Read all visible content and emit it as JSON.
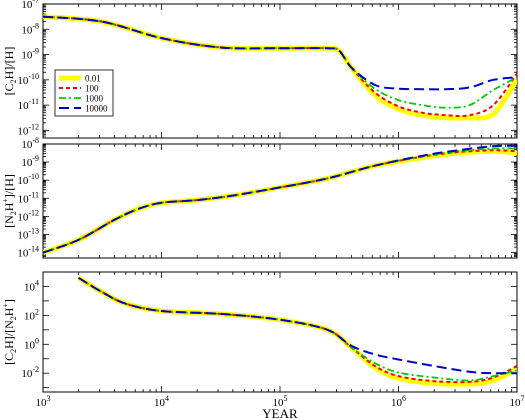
{
  "chart_data": [
    {
      "type": "line",
      "ylabel": "[C2H]/[H]",
      "ylabel_parts": [
        [
          "[C",
          "n"
        ],
        [
          "2",
          "sub"
        ],
        [
          "H]/[H]",
          "n"
        ]
      ],
      "x_scale": "log",
      "y_scale": "log",
      "xlim": [
        1000,
        10000000
      ],
      "ylim_exp": [
        -12.3,
        -7
      ],
      "y_tick_exps": [
        -12,
        -11,
        -10,
        -9,
        -8,
        -7
      ],
      "legend": {
        "placement": "left-lower",
        "entries": [
          "0.01",
          "100",
          "1000",
          "10000"
        ]
      },
      "series": [
        {
          "name": "0.01",
          "points": [
            [
              3.0,
              -7.5
            ],
            [
              3.5,
              -7.7
            ],
            [
              4.0,
              -8.35
            ],
            [
              4.5,
              -8.72
            ],
            [
              5.0,
              -8.75
            ],
            [
              5.4,
              -8.75
            ],
            [
              5.5,
              -8.85
            ],
            [
              5.6,
              -9.5
            ],
            [
              5.8,
              -10.6
            ],
            [
              6.0,
              -11.15
            ],
            [
              6.2,
              -11.4
            ],
            [
              6.4,
              -11.5
            ],
            [
              6.6,
              -11.5
            ],
            [
              6.8,
              -11.35
            ],
            [
              7.0,
              -10.0
            ]
          ]
        },
        {
          "name": "100",
          "points": [
            [
              3.0,
              -7.5
            ],
            [
              3.5,
              -7.7
            ],
            [
              4.0,
              -8.35
            ],
            [
              4.5,
              -8.72
            ],
            [
              5.0,
              -8.75
            ],
            [
              5.4,
              -8.75
            ],
            [
              5.5,
              -8.85
            ],
            [
              5.6,
              -9.5
            ],
            [
              5.8,
              -10.5
            ],
            [
              6.0,
              -11.05
            ],
            [
              6.2,
              -11.3
            ],
            [
              6.4,
              -11.4
            ],
            [
              6.6,
              -11.4
            ],
            [
              6.8,
              -11.0
            ],
            [
              7.0,
              -9.75
            ]
          ]
        },
        {
          "name": "1000",
          "points": [
            [
              3.0,
              -7.5
            ],
            [
              3.5,
              -7.7
            ],
            [
              4.0,
              -8.35
            ],
            [
              4.5,
              -8.72
            ],
            [
              5.0,
              -8.75
            ],
            [
              5.4,
              -8.75
            ],
            [
              5.5,
              -8.85
            ],
            [
              5.6,
              -9.5
            ],
            [
              5.8,
              -10.35
            ],
            [
              6.0,
              -10.8
            ],
            [
              6.2,
              -11.0
            ],
            [
              6.4,
              -11.1
            ],
            [
              6.6,
              -11.0
            ],
            [
              6.8,
              -10.4
            ],
            [
              7.0,
              -9.9
            ]
          ]
        },
        {
          "name": "10000",
          "points": [
            [
              3.0,
              -7.5
            ],
            [
              3.5,
              -7.7
            ],
            [
              4.0,
              -8.35
            ],
            [
              4.5,
              -8.72
            ],
            [
              5.0,
              -8.75
            ],
            [
              5.4,
              -8.75
            ],
            [
              5.5,
              -8.85
            ],
            [
              5.6,
              -9.5
            ],
            [
              5.8,
              -10.2
            ],
            [
              6.0,
              -10.35
            ],
            [
              6.2,
              -10.37
            ],
            [
              6.4,
              -10.37
            ],
            [
              6.6,
              -10.3
            ],
            [
              6.8,
              -10.0
            ],
            [
              7.0,
              -9.9
            ]
          ]
        }
      ]
    },
    {
      "type": "line",
      "ylabel": "[N2H+]/[H]",
      "ylabel_parts": [
        [
          "[N",
          "n"
        ],
        [
          "2",
          "sub"
        ],
        [
          "H",
          "n"
        ],
        [
          "+",
          "sup"
        ],
        [
          "]/[H]",
          "n"
        ]
      ],
      "x_scale": "log",
      "y_scale": "log",
      "xlim": [
        1000,
        10000000
      ],
      "ylim_exp": [
        -14.3,
        -8
      ],
      "y_tick_exps": [
        -14,
        -13,
        -12,
        -11,
        -10,
        -9,
        -8
      ],
      "series": [
        {
          "name": "0.01",
          "points": [
            [
              3.0,
              -14.0
            ],
            [
              3.3,
              -13.3
            ],
            [
              3.6,
              -12.2
            ],
            [
              3.8,
              -11.6
            ],
            [
              4.0,
              -11.25
            ],
            [
              4.3,
              -11.1
            ],
            [
              4.6,
              -10.85
            ],
            [
              5.0,
              -10.4
            ],
            [
              5.4,
              -9.9
            ],
            [
              5.8,
              -9.2
            ],
            [
              6.2,
              -8.75
            ],
            [
              6.5,
              -8.5
            ],
            [
              6.8,
              -8.4
            ],
            [
              7.0,
              -8.5
            ]
          ]
        },
        {
          "name": "100",
          "points": [
            [
              3.0,
              -14.0
            ],
            [
              3.3,
              -13.3
            ],
            [
              3.6,
              -12.2
            ],
            [
              3.8,
              -11.6
            ],
            [
              4.0,
              -11.25
            ],
            [
              4.3,
              -11.1
            ],
            [
              4.6,
              -10.85
            ],
            [
              5.0,
              -10.4
            ],
            [
              5.4,
              -9.9
            ],
            [
              5.8,
              -9.2
            ],
            [
              6.2,
              -8.7
            ],
            [
              6.5,
              -8.45
            ],
            [
              6.8,
              -8.35
            ],
            [
              7.0,
              -8.4
            ]
          ]
        },
        {
          "name": "1000",
          "points": [
            [
              3.0,
              -14.0
            ],
            [
              3.3,
              -13.3
            ],
            [
              3.6,
              -12.2
            ],
            [
              3.8,
              -11.6
            ],
            [
              4.0,
              -11.25
            ],
            [
              4.3,
              -11.1
            ],
            [
              4.6,
              -10.85
            ],
            [
              5.0,
              -10.4
            ],
            [
              5.4,
              -9.9
            ],
            [
              5.8,
              -9.2
            ],
            [
              6.2,
              -8.7
            ],
            [
              6.5,
              -8.4
            ],
            [
              6.8,
              -8.25
            ],
            [
              7.0,
              -8.25
            ]
          ]
        },
        {
          "name": "10000",
          "points": [
            [
              3.0,
              -14.0
            ],
            [
              3.3,
              -13.3
            ],
            [
              3.6,
              -12.2
            ],
            [
              3.8,
              -11.6
            ],
            [
              4.0,
              -11.25
            ],
            [
              4.3,
              -11.1
            ],
            [
              4.6,
              -10.85
            ],
            [
              5.0,
              -10.4
            ],
            [
              5.4,
              -9.9
            ],
            [
              5.8,
              -9.2
            ],
            [
              6.2,
              -8.65
            ],
            [
              6.5,
              -8.35
            ],
            [
              6.8,
              -8.12
            ],
            [
              7.0,
              -8.1
            ]
          ]
        }
      ]
    },
    {
      "type": "line",
      "ylabel": "[C2H]/[N2H+]",
      "ylabel_parts": [
        [
          "[C",
          "n"
        ],
        [
          "2",
          "sub"
        ],
        [
          "H]/[N",
          "n"
        ],
        [
          "2",
          "sub"
        ],
        [
          "H",
          "n"
        ],
        [
          "+",
          "sup"
        ],
        [
          "]",
          "n"
        ]
      ],
      "x_scale": "log",
      "y_scale": "log",
      "xlim": [
        1000,
        10000000
      ],
      "ylim_exp": [
        -3.3,
        5
      ],
      "y_tick_exps": [
        -2,
        0,
        2,
        4
      ],
      "xlabel": "YEAR",
      "x_tick_exps": [
        3,
        4,
        5,
        6,
        7
      ],
      "series": [
        {
          "name": "0.01",
          "points": [
            [
              3.3,
              4.6
            ],
            [
              3.5,
              3.6
            ],
            [
              3.7,
              2.8
            ],
            [
              4.0,
              2.3
            ],
            [
              4.5,
              2.1
            ],
            [
              5.0,
              1.7
            ],
            [
              5.4,
              1.0
            ],
            [
              5.6,
              -0.2
            ],
            [
              5.8,
              -1.6
            ],
            [
              6.0,
              -2.35
            ],
            [
              6.3,
              -2.7
            ],
            [
              6.6,
              -2.75
            ],
            [
              6.8,
              -2.5
            ],
            [
              7.0,
              -1.7
            ]
          ]
        },
        {
          "name": "100",
          "points": [
            [
              3.3,
              4.6
            ],
            [
              3.5,
              3.6
            ],
            [
              3.7,
              2.8
            ],
            [
              4.0,
              2.3
            ],
            [
              4.5,
              2.1
            ],
            [
              5.0,
              1.7
            ],
            [
              5.4,
              1.0
            ],
            [
              5.6,
              -0.2
            ],
            [
              5.8,
              -1.5
            ],
            [
              6.0,
              -2.2
            ],
            [
              6.3,
              -2.55
            ],
            [
              6.6,
              -2.6
            ],
            [
              6.8,
              -2.3
            ],
            [
              7.0,
              -1.5
            ]
          ]
        },
        {
          "name": "1000",
          "points": [
            [
              3.3,
              4.6
            ],
            [
              3.5,
              3.6
            ],
            [
              3.7,
              2.8
            ],
            [
              4.0,
              2.3
            ],
            [
              4.5,
              2.1
            ],
            [
              5.0,
              1.7
            ],
            [
              5.4,
              1.0
            ],
            [
              5.6,
              -0.2
            ],
            [
              5.8,
              -1.3
            ],
            [
              6.0,
              -1.95
            ],
            [
              6.3,
              -2.3
            ],
            [
              6.6,
              -2.5
            ],
            [
              6.8,
              -2.2
            ],
            [
              7.0,
              -1.8
            ]
          ]
        },
        {
          "name": "10000",
          "points": [
            [
              3.3,
              4.6
            ],
            [
              3.5,
              3.6
            ],
            [
              3.7,
              2.8
            ],
            [
              4.0,
              2.3
            ],
            [
              4.5,
              2.1
            ],
            [
              5.0,
              1.7
            ],
            [
              5.4,
              1.0
            ],
            [
              5.6,
              -0.1
            ],
            [
              5.8,
              -0.7
            ],
            [
              6.0,
              -1.05
            ],
            [
              6.3,
              -1.5
            ],
            [
              6.6,
              -1.9
            ],
            [
              6.8,
              -2.0
            ],
            [
              7.0,
              -2.0
            ]
          ]
        }
      ]
    }
  ],
  "series_styles": [
    {
      "name": "0.01",
      "color": "#ffff00",
      "dash": "solid"
    },
    {
      "name": "100",
      "color": "#ff0000",
      "dash": "dashed"
    },
    {
      "name": "1000",
      "color": "#00cc00",
      "dash": "dash-dot"
    },
    {
      "name": "10000",
      "color": "#0000cc",
      "dash": "long-dash"
    }
  ]
}
